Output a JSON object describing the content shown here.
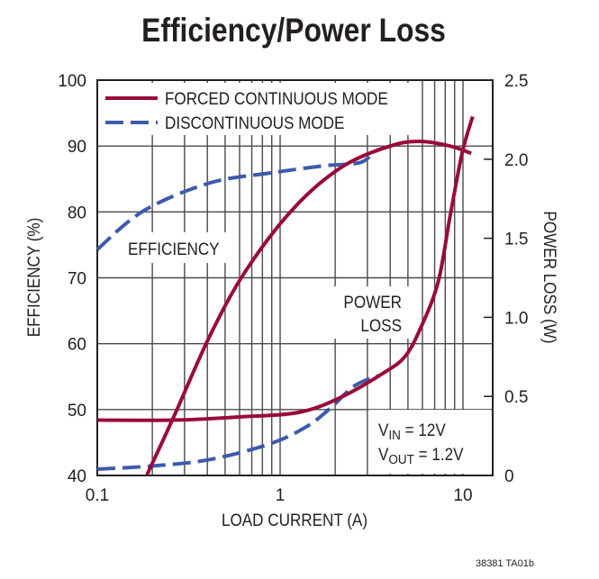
{
  "chart_data": {
    "type": "line",
    "title": "Efficiency/Power Loss",
    "xlabel": "LOAD CURRENT (A)",
    "ylabel": "EFFICIENCY (%)",
    "y2label": "POWER LOSS (W)",
    "x_scale": "log",
    "xlim": [
      0.1,
      14.5
    ],
    "ylim": [
      40,
      100
    ],
    "y2lim": [
      0,
      2.5
    ],
    "x_ticks": [
      "0.1",
      "1",
      "10"
    ],
    "x_tick_values": [
      0.1,
      1,
      10
    ],
    "y_ticks": [
      "40",
      "50",
      "60",
      "70",
      "80",
      "90",
      "100"
    ],
    "y2_ticks": [
      "0",
      "0.5",
      "1.0",
      "1.5",
      "2.0",
      "2.5"
    ],
    "grid": true,
    "legend_position": "top-left",
    "colors": {
      "forced": "#9a0b39",
      "discontinuous": "#3d5aab"
    },
    "legend": [
      {
        "label": "FORCED CONTINUOUS MODE",
        "style": "solid",
        "color": "#9a0b39"
      },
      {
        "label": "DISCONTINUOUS MODE",
        "style": "dashed",
        "color": "#3d5aab"
      }
    ],
    "annotations": {
      "efficiency": "EFFICIENCY",
      "power_loss_1": "POWER",
      "power_loss_2": "LOSS",
      "vin_sym": "V",
      "vin_sub": "IN",
      "vin_val": " = 12V",
      "vout_sym": "V",
      "vout_sub": "OUT",
      "vout_val": " = 1.2V"
    },
    "series": [
      {
        "name": "FORCED CONTINUOUS MODE",
        "quantity": "efficiency",
        "axis": "left",
        "style": "solid",
        "x": [
          0.187,
          0.262,
          0.413,
          0.65,
          1.2,
          2.2,
          4.0,
          5.8,
          8.5,
          11.1
        ],
        "y": [
          40.1,
          48.9,
          61.2,
          71.1,
          80.7,
          86.9,
          90.0,
          90.7,
          90.0,
          88.9
        ]
      },
      {
        "name": "DISCONTINUOUS MODE",
        "quantity": "efficiency",
        "axis": "left",
        "style": "dashed",
        "x": [
          0.1,
          0.18,
          0.413,
          0.88,
          1.74,
          2.75,
          3.3,
          4.0
        ],
        "y": [
          74.3,
          80.2,
          84.4,
          85.9,
          87.0,
          87.5,
          89.2,
          90.0
        ]
      },
      {
        "name": "FORCED CONTINUOUS MODE",
        "quantity": "power_loss",
        "axis": "right",
        "style": "solid",
        "x": [
          0.1,
          0.26,
          0.6,
          1.28,
          2.2,
          3.7,
          4.8,
          5.8,
          7.3,
          8.5,
          9.9,
          11.3
        ],
        "y": [
          0.35,
          0.35,
          0.37,
          0.4,
          0.5,
          0.65,
          0.75,
          0.92,
          1.22,
          1.64,
          2.04,
          2.27
        ]
      },
      {
        "name": "DISCONTINUOUS MODE",
        "quantity": "power_loss",
        "axis": "right",
        "style": "dashed",
        "x": [
          0.1,
          0.2,
          0.41,
          0.88,
          1.4,
          1.9,
          2.5,
          3.2,
          3.5
        ],
        "y": [
          0.04,
          0.06,
          0.1,
          0.2,
          0.31,
          0.43,
          0.56,
          0.62,
          0.63
        ]
      }
    ],
    "footnote": "38381 TA01b"
  }
}
